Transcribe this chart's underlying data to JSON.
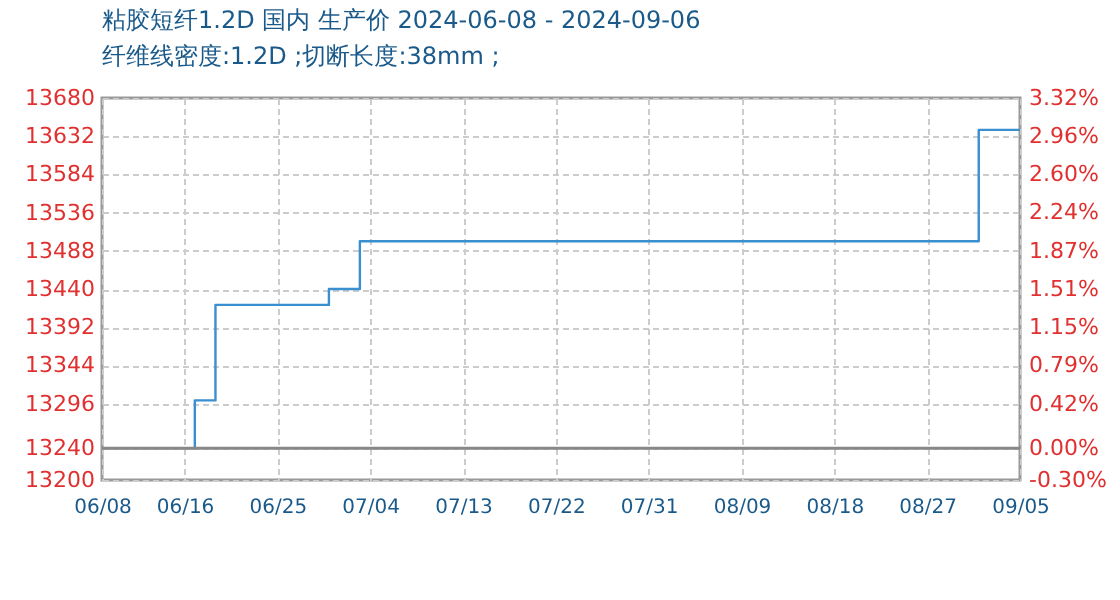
{
  "chart_data": {
    "type": "step",
    "title": "粘胶短纤1.2D 国内 生产价 2024-06-08 - 2024-09-06",
    "subtitle": "纤维线密度:1.2D ;切断长度:38mm ;",
    "x": [
      "2024-06-08",
      "2024-06-17",
      "2024-06-19",
      "2024-06-30",
      "2024-07-03",
      "2024-09-01",
      "2024-09-05"
    ],
    "series": [
      {
        "color": "#3a8fd0",
        "values": [
          13240,
          13300,
          13420,
          13440,
          13500,
          13640,
          13640
        ]
      }
    ],
    "xlim": [
      "2024-06-08",
      "2024-09-05"
    ],
    "xticks": [
      {
        "value": "2024-06-08",
        "label": "06/08"
      },
      {
        "value": "2024-06-16",
        "label": "06/16"
      },
      {
        "value": "2024-06-25",
        "label": "06/25"
      },
      {
        "value": "2024-07-04",
        "label": "07/04"
      },
      {
        "value": "2024-07-13",
        "label": "07/13"
      },
      {
        "value": "2024-07-22",
        "label": "07/22"
      },
      {
        "value": "2024-07-31",
        "label": "07/31"
      },
      {
        "value": "2024-08-09",
        "label": "08/09"
      },
      {
        "value": "2024-08-18",
        "label": "08/18"
      },
      {
        "value": "2024-08-27",
        "label": "08/27"
      },
      {
        "value": "2024-09-05",
        "label": "09/05"
      }
    ],
    "ylim": [
      13200,
      13680
    ],
    "yticks": [
      13200,
      13240,
      13296,
      13344,
      13392,
      13440,
      13488,
      13536,
      13584,
      13632,
      13680
    ],
    "y2lim": [
      -0.3,
      3.32
    ],
    "y2ticks": [
      {
        "value": -0.3,
        "label": "-0.30%"
      },
      {
        "value": 0,
        "label": "0.00%"
      },
      {
        "value": 0.42,
        "label": "0.42%"
      },
      {
        "value": 0.79,
        "label": "0.79%"
      },
      {
        "value": 1.15,
        "label": "1.15%"
      },
      {
        "value": 1.51,
        "label": "1.51%"
      },
      {
        "value": 1.87,
        "label": "1.87%"
      },
      {
        "value": 2.24,
        "label": "2.24%"
      },
      {
        "value": 2.6,
        "label": "2.60%"
      },
      {
        "value": 2.96,
        "label": "2.96%"
      },
      {
        "value": 3.32,
        "label": "3.32%"
      }
    ],
    "ref_lines": [
      {
        "axis": "y2",
        "value": 0,
        "color": "#888888"
      }
    ],
    "grid": true
  }
}
